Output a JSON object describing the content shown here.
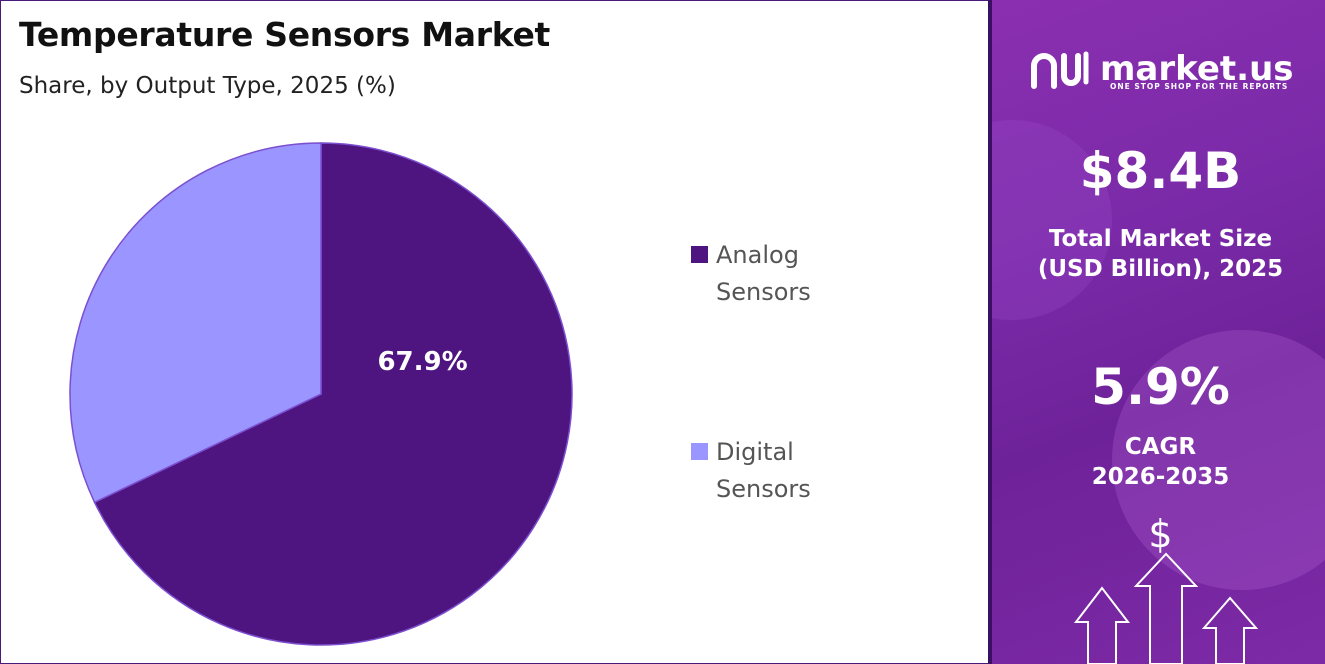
{
  "header": {
    "title": "Temperature Sensors Market",
    "subtitle": "Share, by Output Type, 2025 (%)"
  },
  "chart_data": {
    "type": "pie",
    "title": "Temperature Sensors Market",
    "subtitle": "Share, by Output Type, 2025 (%)",
    "categories": [
      "Analog Sensors",
      "Digital Sensors"
    ],
    "values": [
      67.9,
      32.1
    ],
    "colors": [
      "#4e1580",
      "#9a95ff"
    ],
    "data_labels": [
      "67.9%",
      ""
    ],
    "legend_placement": "right"
  },
  "legend": {
    "items": [
      {
        "line1": "Analog",
        "line2": "Sensors",
        "color": "#4e1580"
      },
      {
        "line1": "Digital",
        "line2": "Sensors",
        "color": "#9a95ff"
      }
    ]
  },
  "brand": {
    "name": "market.us",
    "tagline": "ONE STOP SHOP FOR THE REPORTS"
  },
  "stats": {
    "market_size_value": "$8.4B",
    "market_size_label_1": "Total Market Size",
    "market_size_label_2": "(USD Billion), 2025",
    "cagr_value": "5.9%",
    "cagr_label_1": "CAGR",
    "cagr_label_2": "2026-2035"
  },
  "icons": {
    "currency_symbol": "$",
    "growth_icon": "arrows-up-icon"
  }
}
